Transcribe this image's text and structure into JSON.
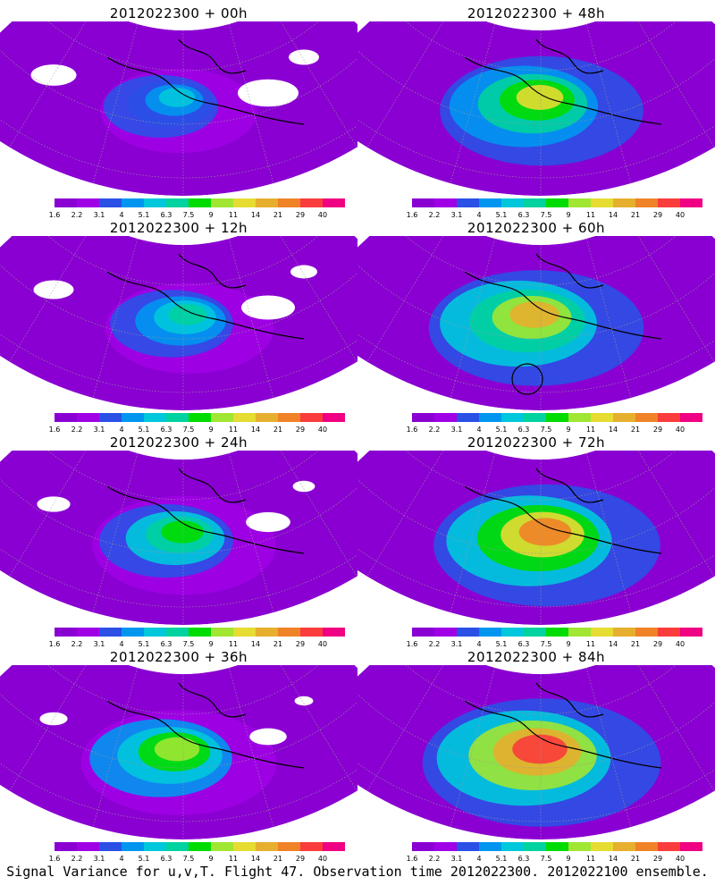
{
  "panels": [
    {
      "title": "2012022300 + 00h",
      "level": 0.15
    },
    {
      "title": "2012022300 + 48h",
      "level": 0.55
    },
    {
      "title": "2012022300 + 12h",
      "level": 0.25
    },
    {
      "title": "2012022300 + 60h",
      "level": 0.65,
      "marker": true
    },
    {
      "title": "2012022300 + 24h",
      "level": 0.38
    },
    {
      "title": "2012022300 + 72h",
      "level": 0.75
    },
    {
      "title": "2012022300 + 36h",
      "level": 0.48
    },
    {
      "title": "2012022300 + 84h",
      "level": 0.85
    }
  ],
  "colorbar": {
    "colors": [
      "#8a00d2",
      "#a000e6",
      "#2a50e6",
      "#0096f0",
      "#00c8dc",
      "#00d2a0",
      "#00dc00",
      "#a0e632",
      "#e6dc32",
      "#e6af2d",
      "#f08228",
      "#fa3c3c",
      "#f00082"
    ],
    "tick_labels": [
      "1.6",
      "2.2",
      "3.1",
      "4",
      "5.1",
      "6.3",
      "7.5",
      "9",
      "11",
      "14",
      "21",
      "29",
      "40"
    ]
  },
  "caption": "Signal Variance for u,v,T. Flight 47. Observation time 2012022300. 2012022100 ensemble."
}
